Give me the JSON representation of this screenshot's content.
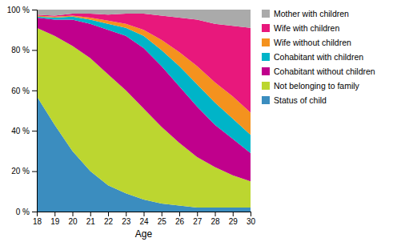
{
  "chart_data": {
    "type": "area",
    "stacked": true,
    "x_label": "Age",
    "x": [
      18,
      19,
      20,
      21,
      22,
      23,
      24,
      25,
      26,
      27,
      28,
      29,
      30
    ],
    "series": [
      {
        "name": "Status of child",
        "color": "#3b8dbf",
        "values": [
          57,
          43,
          30,
          20,
          13,
          9,
          6,
          4,
          3,
          2,
          2,
          2,
          2
        ]
      },
      {
        "name": "Not belonging to family",
        "color": "#bcd630",
        "values": [
          34,
          44,
          52,
          56,
          55,
          51,
          45,
          38,
          31,
          25,
          20,
          16,
          13
        ]
      },
      {
        "name": "Cohabitant without children",
        "color": "#c0008c",
        "values": [
          5,
          8,
          13,
          17,
          22,
          27,
          30,
          30,
          28,
          25,
          21,
          18,
          14
        ]
      },
      {
        "name": "Cohabitant with children",
        "color": "#00b4c8",
        "values": [
          0.5,
          1,
          1.5,
          2,
          3,
          4,
          6,
          8,
          10,
          11,
          11,
          10,
          9
        ]
      },
      {
        "name": "Wife without children",
        "color": "#f4921e",
        "values": [
          0.5,
          0.5,
          0.5,
          1,
          1.5,
          2,
          3,
          5,
          7,
          9,
          10,
          11,
          11
        ]
      },
      {
        "name": "Wife with children",
        "color": "#e8187c",
        "values": [
          0.5,
          0.5,
          1,
          2,
          3,
          5,
          8,
          12,
          17,
          23,
          29,
          35,
          42
        ]
      },
      {
        "name": "Mother with children",
        "color": "#aaaaaa",
        "values": [
          2.5,
          3,
          2,
          2,
          2.5,
          2,
          2,
          3,
          4,
          5,
          7,
          8,
          9
        ]
      }
    ],
    "xlim": [
      18,
      30
    ],
    "xticks": [
      18,
      19,
      20,
      21,
      22,
      23,
      24,
      25,
      26,
      27,
      28,
      29,
      30
    ],
    "ylim": [
      0,
      100
    ],
    "yticks": [
      {
        "value": 0,
        "label": "0 %"
      },
      {
        "value": 20,
        "label": "20 %"
      },
      {
        "value": 40,
        "label": "40 %"
      },
      {
        "value": 60,
        "label": "60 %"
      },
      {
        "value": 80,
        "label": "80 %"
      },
      {
        "value": 100,
        "label": "100 %"
      }
    ],
    "grid": false,
    "legend": "right"
  }
}
